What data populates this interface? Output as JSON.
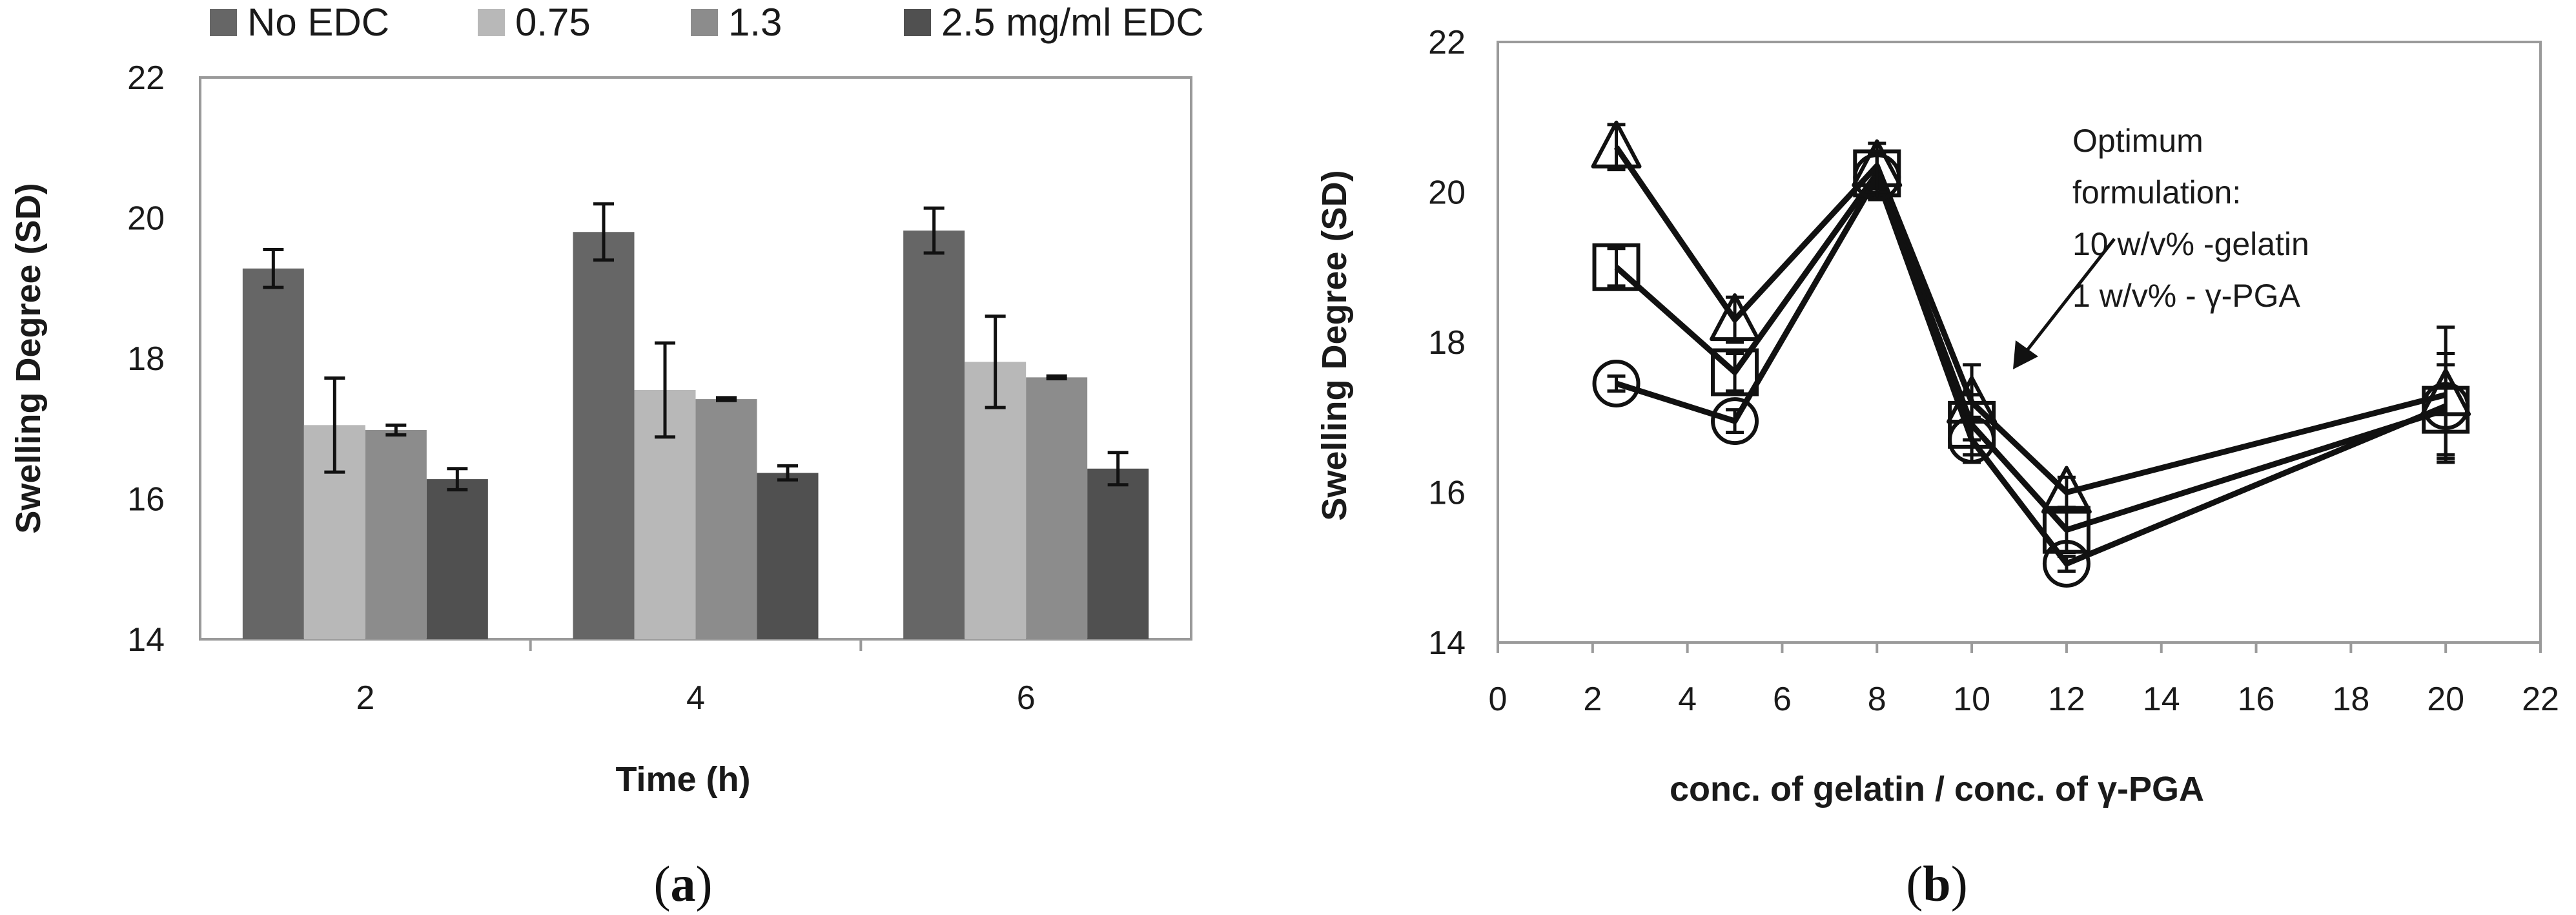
{
  "chart_data": [
    {
      "type": "bar",
      "panel_label": {
        "open": "(",
        "letter": "a",
        "close": ")"
      },
      "title": "",
      "xlabel": "Time (h)",
      "ylabel": "Swelling Degree (SD)",
      "ylim": [
        14,
        22
      ],
      "yticks": [
        "14",
        "16",
        "18",
        "20",
        "22"
      ],
      "categories": [
        "2",
        "4",
        "6"
      ],
      "grid": false,
      "legend_position": "top",
      "series": [
        {
          "name": "No EDC",
          "color": "#666666",
          "values": [
            19.28,
            19.8,
            19.82
          ],
          "errors": [
            0.27,
            0.4,
            0.32
          ]
        },
        {
          "name": "0.75",
          "color": "#b8b8b8",
          "values": [
            17.05,
            17.55,
            17.95
          ],
          "errors": [
            0.67,
            0.67,
            0.65
          ]
        },
        {
          "name": "1.3",
          "color": "#8c8c8c",
          "values": [
            16.98,
            17.42,
            17.73
          ],
          "errors": [
            0.07,
            0.02,
            0.02
          ]
        },
        {
          "name": "2.5 mg/ml EDC",
          "color": "#505050",
          "values": [
            16.28,
            16.37,
            16.43
          ],
          "errors": [
            0.15,
            0.1,
            0.23
          ]
        }
      ]
    },
    {
      "type": "line",
      "panel_label": {
        "open": "(",
        "letter": "b",
        "close": ")"
      },
      "title": "",
      "xlabel": "conc. of gelatin / conc. of γ-PGA",
      "ylabel": "Swelling Degree (SD)",
      "xlim": [
        0,
        22
      ],
      "ylim": [
        14,
        22
      ],
      "xticks": [
        "0",
        "2",
        "4",
        "6",
        "8",
        "10",
        "12",
        "14",
        "16",
        "18",
        "20",
        "22"
      ],
      "yticks": [
        "14",
        "16",
        "18",
        "20",
        "22"
      ],
      "grid": false,
      "series": [
        {
          "name": "triangle",
          "marker": "triangle",
          "x": [
            2.5,
            5,
            8,
            10,
            12,
            20
          ],
          "y": [
            20.6,
            18.3,
            20.35,
            17.2,
            16.0,
            17.3
          ],
          "errors": [
            0.3,
            0.3,
            0.3,
            0.5,
            0.2,
            0.9
          ]
        },
        {
          "name": "square",
          "marker": "square",
          "x": [
            2.5,
            5,
            8,
            10,
            12,
            20
          ],
          "y": [
            19.0,
            17.6,
            20.25,
            16.9,
            15.5,
            17.1
          ],
          "errors": [
            0.25,
            0.25,
            0.25,
            0.4,
            0.3,
            0.6
          ]
        },
        {
          "name": "circle",
          "marker": "circle",
          "x": [
            2.5,
            5,
            8,
            10,
            12,
            20
          ],
          "y": [
            17.45,
            16.95,
            20.2,
            16.7,
            15.05,
            17.15
          ],
          "errors": [
            0.1,
            0.15,
            0.3,
            0.3,
            0.1,
            0.7
          ]
        }
      ],
      "annotation": [
        "Optimum",
        "formulation:",
        "10 w/v% -gelatin",
        "1 w/v% - γ-PGA"
      ]
    }
  ]
}
